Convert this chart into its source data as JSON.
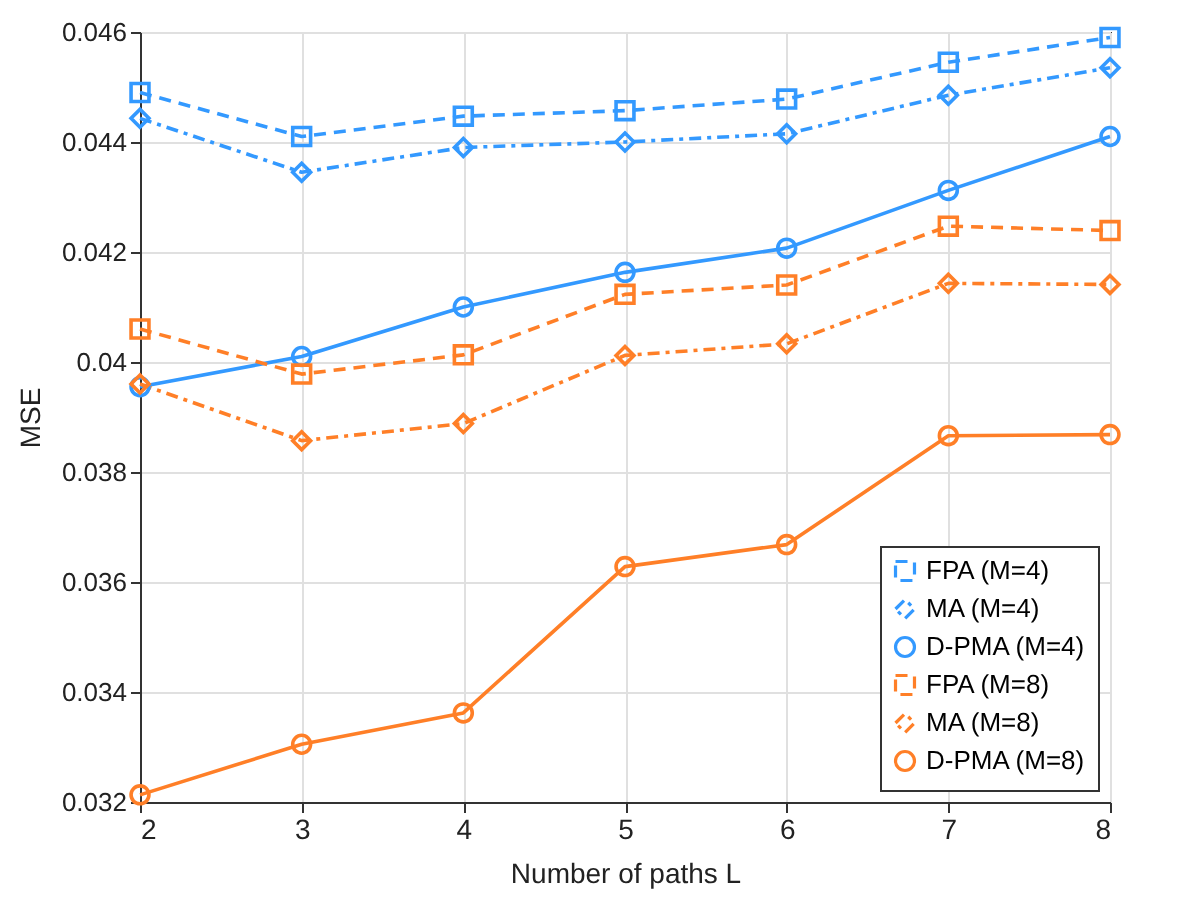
{
  "chart_data": {
    "type": "line",
    "xlabel": "Number of paths L",
    "ylabel": "MSE",
    "x": [
      2,
      3,
      4,
      5,
      6,
      7,
      8
    ],
    "xlim": [
      2,
      8
    ],
    "xticks": [
      2,
      3,
      4,
      5,
      6,
      7,
      8
    ],
    "ylim": [
      0.032,
      0.046
    ],
    "yticks": [
      0.032,
      0.034,
      0.036,
      0.038,
      0.04,
      0.042,
      0.044,
      0.046
    ],
    "grid": true,
    "legend": "bottom right",
    "series": [
      {
        "name": "FPA (M=4)",
        "color": "#3399ff",
        "marker": "square",
        "line_style": "dashed",
        "values": [
          0.0449,
          0.0441,
          0.04447,
          0.04457,
          0.04478,
          0.04545,
          0.0459
        ]
      },
      {
        "name": "MA (M=4)",
        "color": "#3399ff",
        "marker": "diamond",
        "line_style": "dashdot",
        "values": [
          0.04443,
          0.04345,
          0.0439,
          0.044,
          0.04415,
          0.04485,
          0.04535
        ]
      },
      {
        "name": "D-PMA (M=4)",
        "color": "#3399ff",
        "marker": "circle",
        "line_style": "solid",
        "values": [
          0.03955,
          0.0401,
          0.041,
          0.04163,
          0.04207,
          0.04312,
          0.0441
        ]
      },
      {
        "name": "FPA (M=8)",
        "color": "#ff7f27",
        "marker": "square",
        "line_style": "dashed",
        "values": [
          0.0406,
          0.03978,
          0.04013,
          0.04123,
          0.0414,
          0.04247,
          0.04239
        ]
      },
      {
        "name": "MA (M=8)",
        "color": "#ff7f27",
        "marker": "diamond",
        "line_style": "dashdot",
        "values": [
          0.0396,
          0.03857,
          0.03888,
          0.04012,
          0.04033,
          0.04143,
          0.04141
        ]
      },
      {
        "name": "D-PMA (M=8)",
        "color": "#ff7f27",
        "marker": "circle",
        "line_style": "solid",
        "values": [
          0.03213,
          0.03305,
          0.03362,
          0.03628,
          0.03668,
          0.03866,
          0.03868
        ]
      }
    ]
  }
}
